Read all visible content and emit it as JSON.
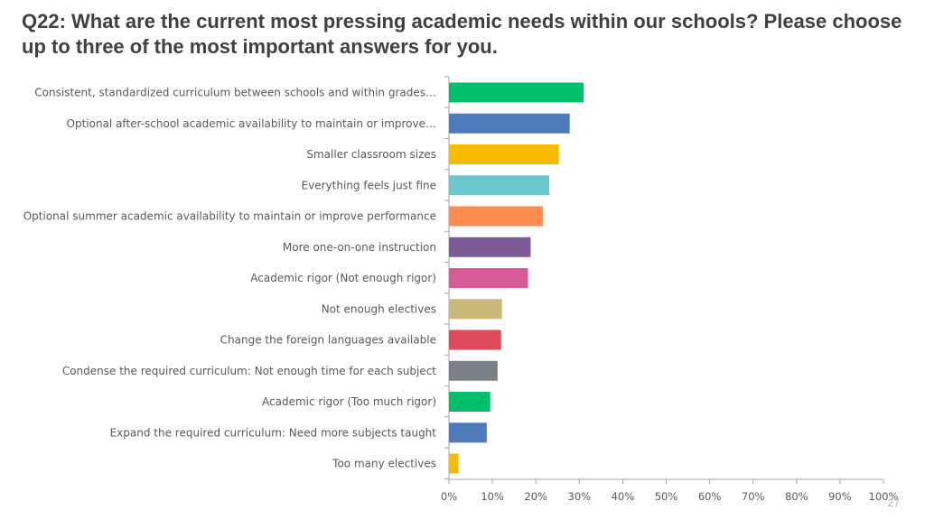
{
  "page": {
    "title": "Q22: What are the current most pressing academic needs within our schools? Please choose up to three of the most important answers for you.",
    "page_number": "27"
  },
  "chart_data": {
    "type": "bar",
    "orientation": "horizontal",
    "title": "Q22: What are the current most pressing academic needs within our schools? Please choose up to three of the most important answers for you.",
    "xlabel": "",
    "ylabel": "",
    "categories": [
      "Consistent, standardized curriculum between schools and within grades…",
      "Optional after-school academic availability to maintain or improve…",
      "Smaller classroom sizes",
      "Everything feels just fine",
      "Optional summer academic availability to maintain or improve performance",
      "More one-on-one instruction",
      "Academic rigor (Not enough rigor)",
      "Not enough electives",
      "Change the foreign languages available",
      "Condense the required curriculum: Not enough time for each subject",
      "Academic rigor (Too much rigor)",
      "Expand the required curriculum: Need more subjects taught",
      "Too many electives"
    ],
    "values": [
      31,
      27.8,
      25.3,
      23.1,
      21.6,
      18.8,
      18.2,
      12.2,
      12.0,
      11.2,
      9.5,
      8.7,
      2.2
    ],
    "xlim": [
      0,
      100
    ],
    "xticks": [
      "0%",
      "10%",
      "20%",
      "30%",
      "40%",
      "50%",
      "60%",
      "70%",
      "80%",
      "90%",
      "100%"
    ],
    "colors": [
      "#00c06b",
      "#4f7bbd",
      "#f7bb00",
      "#6cc8d0",
      "#fd8a4f",
      "#7d5b96",
      "#d75c96",
      "#c9ba7a",
      "#de4b5d",
      "#7a8085",
      "#00c06b",
      "#4f7bbd",
      "#f7bb00"
    ],
    "grid": false,
    "legend": "none"
  }
}
